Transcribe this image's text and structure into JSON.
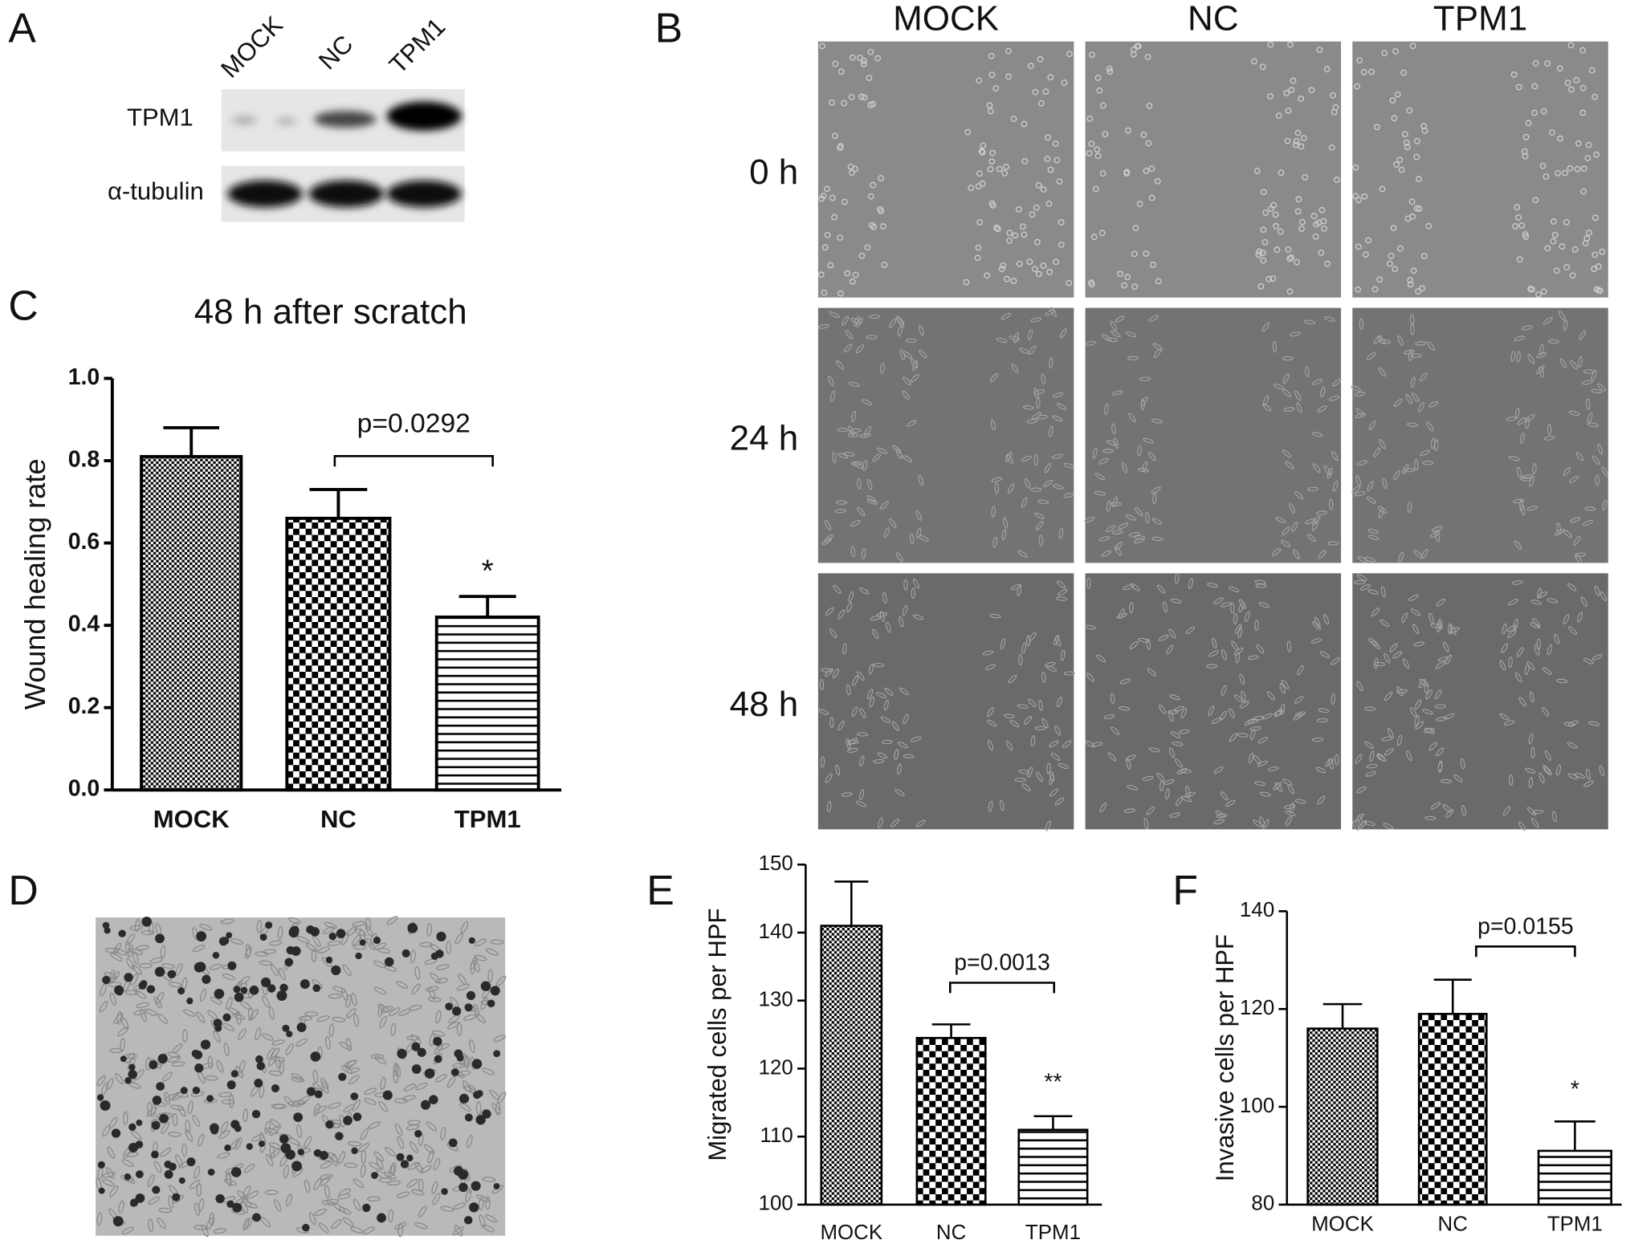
{
  "panel_labels": [
    "A",
    "B",
    "C",
    "D",
    "E",
    "F"
  ],
  "blot": {
    "lanes": [
      "MOCK",
      "NC",
      "TPM1"
    ],
    "rows": [
      "TPM1",
      "α-tubulin"
    ]
  },
  "wound_images": {
    "columns": [
      "MOCK",
      "NC",
      "TPM1"
    ],
    "rows": [
      "0 h",
      "24 h",
      "48 h"
    ]
  },
  "chart_data": [
    {
      "type": "bar",
      "title": "48 h after scratch",
      "y_label": "Wound healing rate",
      "categories": [
        "MOCK",
        "NC",
        "TPM1"
      ],
      "values": [
        0.81,
        0.66,
        0.42
      ],
      "errors": [
        0.07,
        0.07,
        0.05
      ],
      "color": "#000000",
      "ylim": [
        0,
        1.0
      ],
      "yticks": [
        {
          "value": 0,
          "label": "0.0"
        },
        0.2,
        0.4,
        0.6,
        0.8,
        {
          "value": 1.0,
          "label": "1.0"
        }
      ],
      "annotations": [
        "p=0.0292",
        "*"
      ]
    },
    {
      "type": "bar",
      "y_label": "Migrated cells per HPF",
      "categories": [
        "MOCK",
        "NC",
        "TPM1"
      ],
      "values": [
        141,
        124.5,
        111
      ],
      "errors": [
        6.5,
        2,
        2
      ],
      "color": "#000000",
      "ylim": [
        100,
        150
      ],
      "yticks": [
        100,
        110,
        120,
        130,
        140,
        150
      ],
      "annotations": [
        "p=0.0013",
        "**"
      ]
    },
    {
      "type": "bar",
      "y_label": "Invasive cells per HPF",
      "categories": [
        "MOCK",
        "NC",
        "TPM1"
      ],
      "values": [
        116,
        119,
        91
      ],
      "errors": [
        5,
        7,
        6
      ],
      "color": "#000000",
      "ylim": [
        80,
        140
      ],
      "yticks": [
        80,
        100,
        120,
        140
      ],
      "annotations": [
        "p=0.0155",
        "*"
      ]
    }
  ]
}
